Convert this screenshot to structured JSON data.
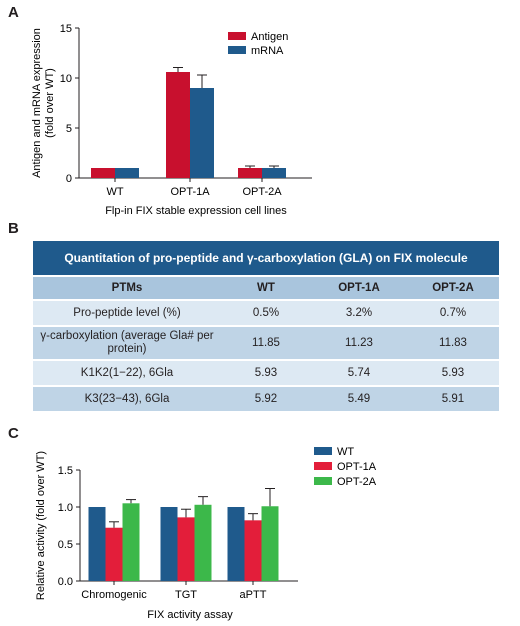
{
  "panels": {
    "a": "A",
    "b": "B",
    "c": "C"
  },
  "colors": {
    "antigen": "#c8102e",
    "mrna": "#1f5a8c",
    "wt": "#1f5a8c",
    "opt1a": "#e31e3a",
    "opt2a": "#3cb84a",
    "table_header": "#1f5a8c",
    "table_colhead": "#a9c5dd",
    "table_row_light": "#dde9f3",
    "table_row_dark": "#bfd4e6"
  },
  "table": {
    "title": "Quantitation of pro-peptide and γ-carboxylation (GLA) on FIX molecule",
    "columns": [
      "PTMs",
      "WT",
      "OPT-1A",
      "OPT-2A"
    ],
    "rows": [
      {
        "ptm": "Pro-peptide level (%)",
        "wt": "0.5%",
        "opt1a": "3.2%",
        "opt2a": "0.7%"
      },
      {
        "ptm": "γ-carboxylation (average Gla# per protein)",
        "wt": "11.85",
        "opt1a": "11.23",
        "opt2a": "11.83"
      },
      {
        "ptm": "K1K2(1−22), 6Gla",
        "wt": "5.93",
        "opt1a": "5.74",
        "opt2a": "5.93"
      },
      {
        "ptm": "K3(23−43), 6Gla",
        "wt": "5.92",
        "opt1a": "5.49",
        "opt2a": "5.91"
      }
    ]
  },
  "chart_data": [
    {
      "type": "bar",
      "panel": "A",
      "categories": [
        "WT",
        "OPT-1A",
        "OPT-2A"
      ],
      "series": [
        {
          "name": "Antigen",
          "values": [
            1.0,
            10.6,
            1.0
          ],
          "errors": [
            0,
            0.45,
            0.2
          ]
        },
        {
          "name": "mRNA",
          "values": [
            1.0,
            9.0,
            1.0
          ],
          "errors": [
            0,
            1.3,
            0.2
          ]
        }
      ],
      "xlabel": "Flp-in FIX stable expression cell lines",
      "ylabel": "Antigen and mRNA expression (fold over WT)",
      "ylim": [
        0,
        15
      ],
      "yticks": [
        0,
        5,
        10,
        15
      ],
      "legend": "top-right",
      "grid": false
    },
    {
      "type": "bar",
      "panel": "C",
      "categories": [
        "Chromogenic",
        "TGT",
        "aPTT"
      ],
      "series": [
        {
          "name": "WT",
          "values": [
            1.0,
            1.0,
            1.0
          ],
          "errors": [
            0,
            0,
            0
          ]
        },
        {
          "name": "OPT-1A",
          "values": [
            0.72,
            0.86,
            0.82
          ],
          "errors": [
            0.08,
            0.11,
            0.09
          ]
        },
        {
          "name": "OPT-2A",
          "values": [
            1.05,
            1.03,
            1.01
          ],
          "errors": [
            0.05,
            0.11,
            0.24
          ]
        }
      ],
      "xlabel": "FIX activity assay",
      "ylabel": "Relative activity (fold over WT)",
      "ylim": [
        0,
        1.5
      ],
      "yticks": [
        "0.0",
        "0.5",
        "1.0",
        "1.5"
      ],
      "legend": "right",
      "grid": false
    }
  ]
}
